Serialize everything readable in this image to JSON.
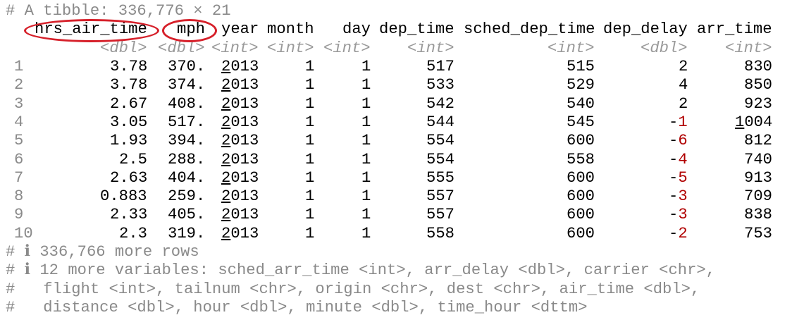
{
  "console": {
    "header": "# A tibble: 336,776 × 21",
    "columns": [
      {
        "name": "hrs_air_time",
        "type": "<dbl>"
      },
      {
        "name": "mph",
        "type": "<dbl>"
      },
      {
        "name": "year",
        "type": "<int>"
      },
      {
        "name": "month",
        "type": "<int>"
      },
      {
        "name": "day",
        "type": "<int>"
      },
      {
        "name": "dep_time",
        "type": "<int>"
      },
      {
        "name": "sched_dep_time",
        "type": "<int>"
      },
      {
        "name": "dep_delay",
        "type": "<dbl>"
      },
      {
        "name": "arr_time",
        "type": "<int>"
      }
    ],
    "rows": [
      {
        "idx": "1",
        "hrs_air_time": "3.78",
        "mph": "370.",
        "year": "2013",
        "month": "1",
        "day": "1",
        "dep_time": "517",
        "sched_dep_time": "515",
        "dep_delay": "2",
        "arr_time": "830"
      },
      {
        "idx": "2",
        "hrs_air_time": "3.78",
        "mph": "374.",
        "year": "2013",
        "month": "1",
        "day": "1",
        "dep_time": "533",
        "sched_dep_time": "529",
        "dep_delay": "4",
        "arr_time": "850"
      },
      {
        "idx": "3",
        "hrs_air_time": "2.67",
        "mph": "408.",
        "year": "2013",
        "month": "1",
        "day": "1",
        "dep_time": "542",
        "sched_dep_time": "540",
        "dep_delay": "2",
        "arr_time": "923"
      },
      {
        "idx": "4",
        "hrs_air_time": "3.05",
        "mph": "517.",
        "year": "2013",
        "month": "1",
        "day": "1",
        "dep_time": "544",
        "sched_dep_time": "545",
        "dep_delay": "-1",
        "arr_time": "1004"
      },
      {
        "idx": "5",
        "hrs_air_time": "1.93",
        "mph": "394.",
        "year": "2013",
        "month": "1",
        "day": "1",
        "dep_time": "554",
        "sched_dep_time": "600",
        "dep_delay": "-6",
        "arr_time": "812"
      },
      {
        "idx": "6",
        "hrs_air_time": "2.5",
        "mph": "288.",
        "year": "2013",
        "month": "1",
        "day": "1",
        "dep_time": "554",
        "sched_dep_time": "558",
        "dep_delay": "-4",
        "arr_time": "740"
      },
      {
        "idx": "7",
        "hrs_air_time": "2.63",
        "mph": "404.",
        "year": "2013",
        "month": "1",
        "day": "1",
        "dep_time": "555",
        "sched_dep_time": "600",
        "dep_delay": "-5",
        "arr_time": "913"
      },
      {
        "idx": "8",
        "hrs_air_time": "0.883",
        "mph": "259.",
        "year": "2013",
        "month": "1",
        "day": "1",
        "dep_time": "557",
        "sched_dep_time": "600",
        "dep_delay": "-3",
        "arr_time": "709"
      },
      {
        "idx": "9",
        "hrs_air_time": "2.33",
        "mph": "405.",
        "year": "2013",
        "month": "1",
        "day": "1",
        "dep_time": "557",
        "sched_dep_time": "600",
        "dep_delay": "-3",
        "arr_time": "838"
      },
      {
        "idx": "10",
        "hrs_air_time": "2.3",
        "mph": "319.",
        "year": "2013",
        "month": "1",
        "day": "1",
        "dep_time": "558",
        "sched_dep_time": "600",
        "dep_delay": "-2",
        "arr_time": "753"
      }
    ],
    "footer": [
      "# ℹ 336,766 more rows",
      "# ℹ 12 more variables: sched_arr_time <int>, arr_delay <dbl>, carrier <chr>,",
      "#   flight <int>, tailnum <chr>, origin <chr>, dest <chr>, air_time <dbl>,",
      "#   distance <dbl>, hour <dbl>, minute <dbl>, time_hour <dttm>"
    ]
  },
  "colors": {
    "annotation": "#d6202a",
    "negative": "#b00000",
    "comment": "#8a8a8a"
  }
}
